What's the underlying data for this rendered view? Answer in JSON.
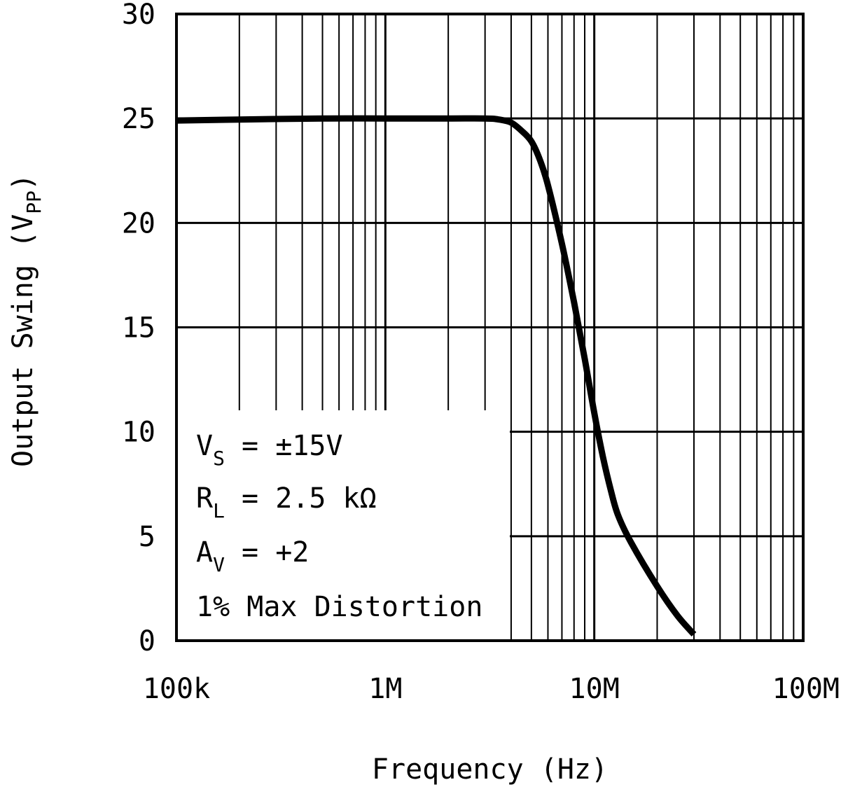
{
  "chart_data": {
    "type": "line",
    "title": "",
    "xlabel": "Frequency (Hz)",
    "ylabel": {
      "main": "Output Swing (V",
      "sub": "PP",
      "close": ")"
    },
    "x_scale": "log",
    "xlim": [
      100000,
      100000000
    ],
    "ylim": [
      0,
      30
    ],
    "grid": true,
    "x_ticks": [
      {
        "value": 100000,
        "label": "100k"
      },
      {
        "value": 1000000,
        "label": "1M"
      },
      {
        "value": 10000000,
        "label": "10M"
      },
      {
        "value": 100000000,
        "label": "100M"
      }
    ],
    "y_ticks": [
      {
        "value": 0,
        "label": "0"
      },
      {
        "value": 5,
        "label": "5"
      },
      {
        "value": 10,
        "label": "10"
      },
      {
        "value": 15,
        "label": "15"
      },
      {
        "value": 20,
        "label": "20"
      },
      {
        "value": 25,
        "label": "25"
      },
      {
        "value": 30,
        "label": "30"
      }
    ],
    "series": [
      {
        "name": "Output Swing",
        "color": "#000000",
        "x": [
          100000,
          200000,
          500000,
          1000000,
          2000000,
          3000000,
          3500000,
          4000000,
          4500000,
          5000000,
          5500000,
          6000000,
          7000000,
          8000000,
          9000000,
          10000000,
          11000000,
          12000000,
          13000000,
          15000000,
          20000000,
          25000000,
          30000000
        ],
        "y": [
          24.9,
          24.95,
          25.0,
          25.0,
          25.0,
          25.0,
          24.95,
          24.8,
          24.4,
          23.9,
          23.0,
          21.8,
          19.0,
          16.2,
          13.5,
          10.9,
          8.8,
          7.2,
          6.0,
          4.7,
          2.6,
          1.2,
          0.3
        ]
      }
    ],
    "annotations": [
      {
        "main": "V",
        "sub": "S",
        "rest": " = ±15V"
      },
      {
        "main": "R",
        "sub": "L",
        "rest": " = 2.5 kΩ"
      },
      {
        "main": "A",
        "sub": "V",
        "rest": " = +2"
      },
      {
        "main": "1% Max Distortion",
        "sub": "",
        "rest": ""
      }
    ]
  }
}
